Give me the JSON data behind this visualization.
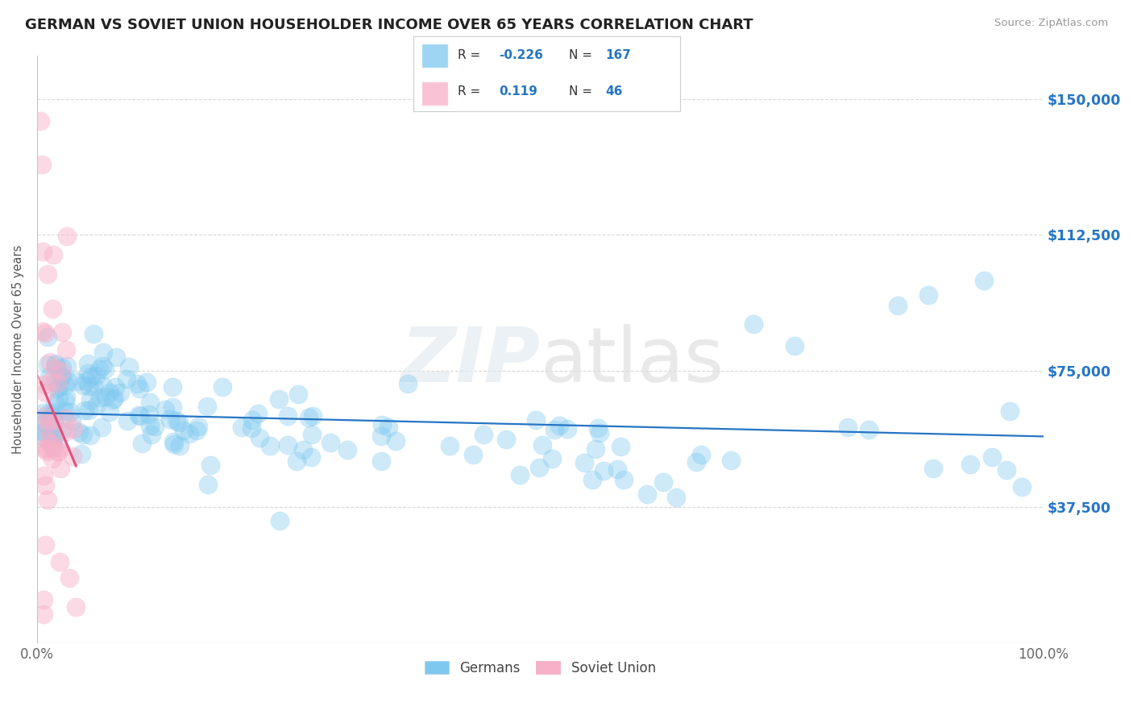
{
  "title": "GERMAN VS SOVIET UNION HOUSEHOLDER INCOME OVER 65 YEARS CORRELATION CHART",
  "source": "Source: ZipAtlas.com",
  "ylabel": "Householder Income Over 65 years",
  "xlim": [
    0.0,
    100.0
  ],
  "ylim": [
    0,
    162000
  ],
  "yticks": [
    0,
    37500,
    75000,
    112500,
    150000
  ],
  "ytick_labels": [
    "",
    "$37,500",
    "$75,000",
    "$112,500",
    "$150,000"
  ],
  "xtick_labels": [
    "0.0%",
    "100.0%"
  ],
  "german_R": "-0.226",
  "german_N": "167",
  "soviet_R": "0.119",
  "soviet_N": "46",
  "watermark": "ZIPatlas",
  "german_color": "#7ec8f0",
  "soviet_color": "#f8afc8",
  "german_line_color": "#2575c4",
  "soviet_line_color": "#e8507a",
  "background_color": "#ffffff",
  "grid_color": "#d8d8d8"
}
